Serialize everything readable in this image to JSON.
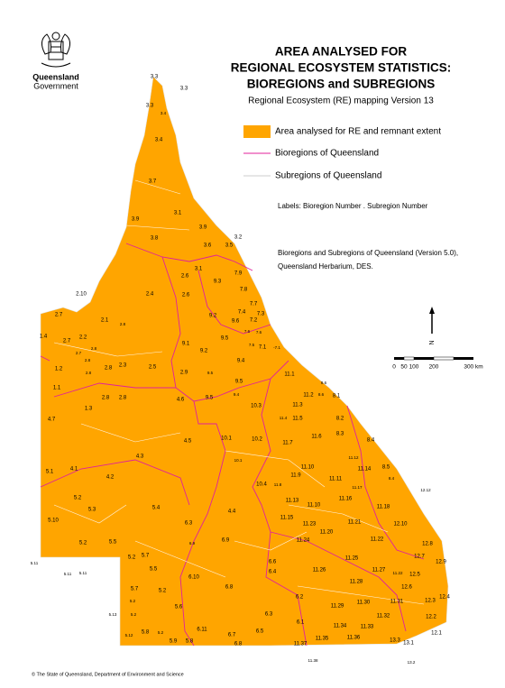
{
  "header": {
    "logo_line1": "Queensland",
    "logo_line2": "Government",
    "title_lines": [
      "AREA ANALYSED FOR",
      "REGIONAL ECOSYSTEM STATISTICS:",
      "BIOREGIONS and SUBREGIONS"
    ],
    "subtitle": "Regional Ecosystem (RE) mapping Version 13"
  },
  "legend": [
    "Area analysed for RE and remnant extent",
    "Bioregions of Queensland",
    "Subregions of Queensland"
  ],
  "notes": {
    "labels": "Labels: Bioregion Number . Subregion Number",
    "source_lines": [
      "Bioregions and Subregions of Queensland (Version 5.0),",
      "Queensland Herbarium, DES."
    ]
  },
  "north_arrow": "N",
  "scale_bar": [
    "0",
    "50",
    "100",
    "200",
    "300 km"
  ],
  "footer": "© The State of Queensland, Department of Environment and Science",
  "map": {
    "labels": [
      "3.3",
      "3.3",
      "3.3",
      "3.4",
      "3.4",
      "3.7",
      "3.1",
      "3.9",
      "3.9",
      "3.2",
      "3.8",
      "3.6",
      "3.5",
      "3.1",
      "7.9",
      "2.6",
      "9.3",
      "7.8",
      "2.10",
      "2.4",
      "2.6",
      "7.7",
      "2.7",
      "9.2",
      "7.4",
      "7.3",
      "2.1",
      "2.8",
      "9.6",
      "7.2",
      "7.6",
      "7.6",
      "1.4",
      "2.7",
      "2.2",
      "9.1",
      "9.5",
      "7.5",
      "7.1",
      "-7.1",
      "2.8",
      "9.2",
      "2.7",
      "2.8",
      "9.4",
      "1.2",
      "2.8",
      "2.8",
      "2.3",
      "2.5",
      "2.9",
      "9.5",
      "11.1",
      "8.6",
      "9.5",
      "1.1",
      "2.8",
      "2.8",
      "4.6",
      "9.5",
      "9.4",
      "11.2",
      "8.1",
      "1.3",
      "10.3",
      "11.3",
      "8.6",
      "4.7",
      "11.4",
      "11.5",
      "8.2",
      "8.3",
      "11.6",
      "8.4",
      "4.5",
      "10.1",
      "10.2",
      "11.7",
      "4.3",
      "11.12",
      "10.1",
      "5.1",
      "4.1",
      "11.10",
      "11.14",
      "8.5",
      "4.2",
      "11.9",
      "11.11",
      "8.4",
      "10.4",
      "11.8",
      "11.17",
      "12.12",
      "5.2",
      "11.13",
      "11.10",
      "11.16",
      "11.18",
      "5.3",
      "5.4",
      "4.4",
      "5.10",
      "11.15",
      "11.23",
      "11.21",
      "12.10",
      "6.3",
      "11.20",
      "5.2",
      "5.5",
      "6.9",
      "6.9",
      "11.24",
      "11.22",
      "12.8",
      "5.11",
      "5.7",
      "5.2",
      "5.11",
      "5.11",
      "6.6",
      "11.25",
      "12.7",
      "12.9",
      "5.5",
      "6.4",
      "11.26",
      "11.27",
      "11.22",
      "12.5",
      "6.10",
      "5.7",
      "5.2",
      "11.28",
      "12.6",
      "6.8",
      "5.2",
      "12.4",
      "6.2",
      "11.30",
      "11.31",
      "12.3",
      "5.6",
      "5.13",
      "5.2",
      "6.3",
      "11.29",
      "11.32",
      "12.2",
      "6.1",
      "11.34",
      "11.33",
      "6.11",
      "5.8",
      "5.2",
      "5.12",
      "6.7",
      "6.5",
      "11.35",
      "11.36",
      "12.1",
      "5.9",
      "5.8",
      "6.8",
      "11.37",
      "13.3",
      "13.1",
      "11.38",
      "13.2"
    ]
  }
}
